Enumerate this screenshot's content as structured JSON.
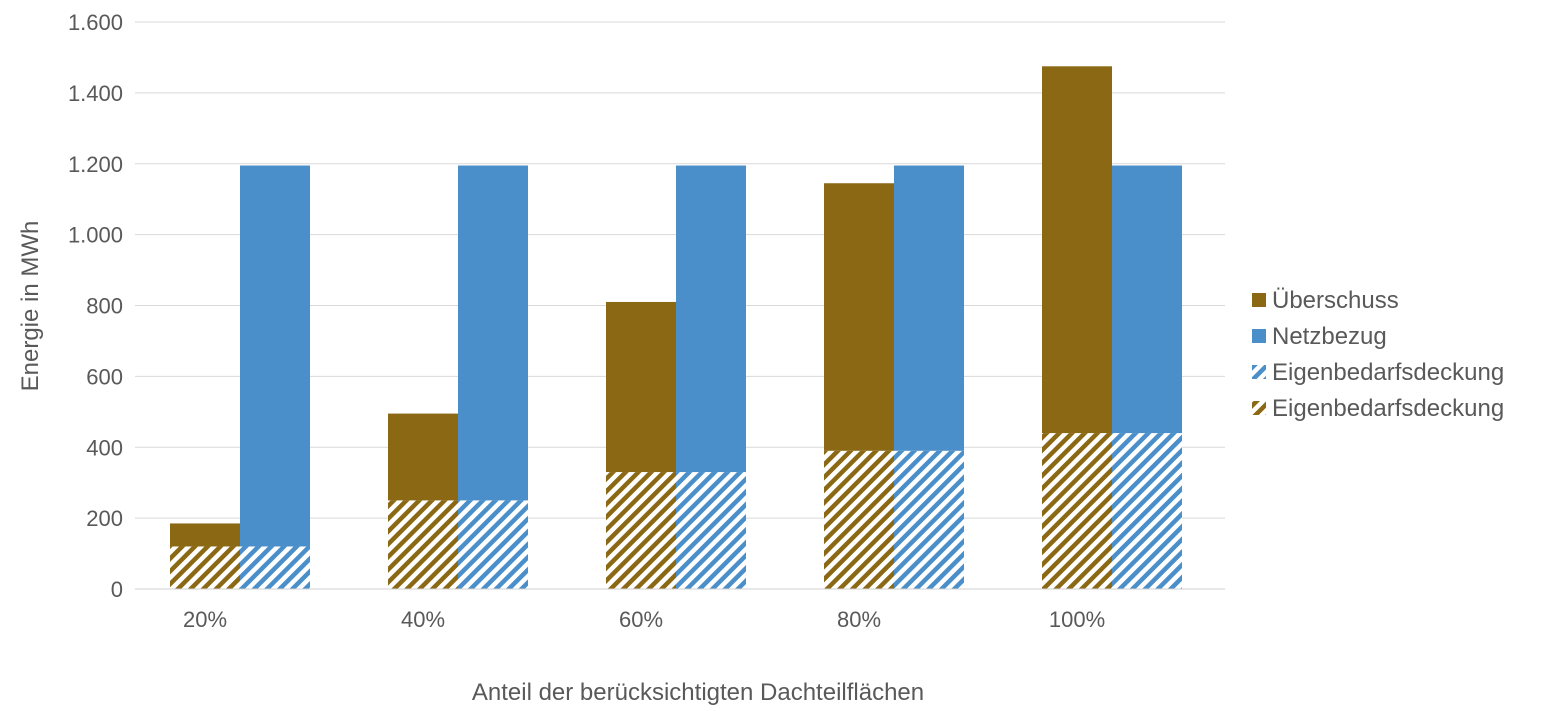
{
  "chart_data": {
    "type": "bar",
    "xlabel": "Anteil der berücksichtigten Dachteilflächen",
    "ylabel": "Energie in MWh",
    "categories": [
      "20%",
      "40%",
      "60%",
      "80%",
      "100%"
    ],
    "ylim": [
      0,
      1600
    ],
    "yticks": [
      0,
      200,
      400,
      600,
      800,
      1000,
      1200,
      1400,
      1600
    ],
    "ytick_labels": [
      "0",
      "200",
      "400",
      "600",
      "800",
      "1.000",
      "1.200",
      "1.400",
      "1.600"
    ],
    "grid": true,
    "legend_position": "right",
    "stacks": [
      {
        "stack": "left",
        "segments": [
          {
            "name": "Eigenbedarfsdeckung",
            "pattern": "hatched",
            "color": "#8B6914",
            "values": [
              120,
              250,
              330,
              390,
              440
            ]
          },
          {
            "name": "Überschuss",
            "pattern": "solid",
            "color": "#8B6914",
            "values": [
              65,
              245,
              480,
              755,
              1035
            ]
          }
        ]
      },
      {
        "stack": "right",
        "segments": [
          {
            "name": "Eigenbedarfsdeckung",
            "pattern": "hatched",
            "color": "#4A8FC9",
            "values": [
              120,
              250,
              330,
              390,
              440
            ]
          },
          {
            "name": "Netzbezug",
            "pattern": "solid",
            "color": "#4A8FC9",
            "values": [
              1075,
              945,
              865,
              805,
              755
            ]
          }
        ]
      }
    ],
    "legend": [
      {
        "label": "Überschuss",
        "color": "#8B6914",
        "pattern": "solid"
      },
      {
        "label": "Netzbezug",
        "color": "#4A8FC9",
        "pattern": "solid"
      },
      {
        "label": "Eigenbedarfsdeckung",
        "color": "#4A8FC9",
        "pattern": "hatched"
      },
      {
        "label": "Eigenbedarfsdeckung",
        "color": "#8B6914",
        "pattern": "hatched"
      }
    ]
  }
}
